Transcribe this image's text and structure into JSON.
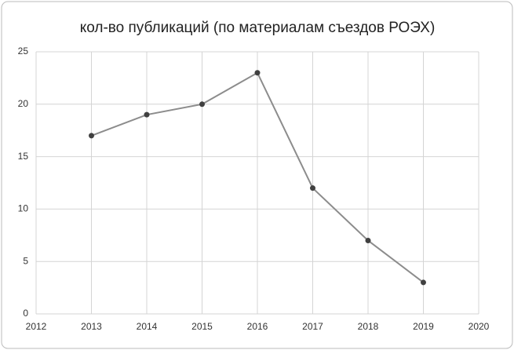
{
  "chart_data": {
    "type": "line",
    "title": "кол-во публикаций (по материалам съездов РОЭХ)",
    "x": [
      2013,
      2014,
      2015,
      2016,
      2017,
      2018,
      2019
    ],
    "series": [
      {
        "color": "#8c8c8c",
        "values": [
          17,
          19,
          20,
          23,
          12,
          7,
          3
        ]
      }
    ],
    "marker_color": "#404040",
    "xlim": [
      2012,
      2020
    ],
    "xticks": [
      2012,
      2013,
      2014,
      2015,
      2016,
      2017,
      2018,
      2019,
      2020
    ],
    "ylim": [
      0,
      25
    ],
    "yticks": [
      0,
      5,
      10,
      15,
      20,
      25
    ],
    "grid": true
  }
}
